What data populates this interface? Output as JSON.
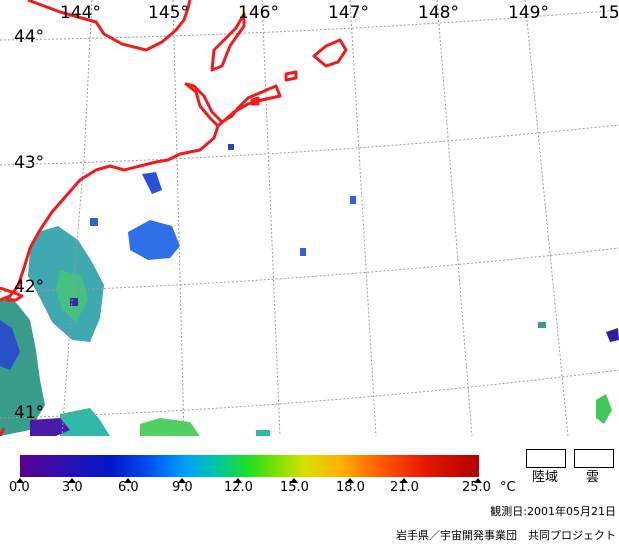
{
  "map": {
    "lon_labels": [
      "144°",
      "145°",
      "146°",
      "147°",
      "148°",
      "149°",
      "15"
    ],
    "lat_labels": [
      "44°",
      "43°",
      "42°",
      "41°"
    ],
    "colors": {
      "coastline": "#ee1c1c",
      "graticule": "#9a9a9a",
      "legend_land": "#ffffff",
      "legend_cloud": "#ffffff"
    }
  },
  "legend": {
    "ticks": [
      "0.0",
      "3.0",
      "6.0",
      "9.0",
      "12.0",
      "15.0",
      "18.0",
      "21.0",
      "25.0"
    ],
    "unit": "°C",
    "land_label": "陸域",
    "cloud_label": "雲"
  },
  "footer": {
    "observation_date": "観測日:2001年05月21日",
    "credit": "岩手県／宇宙開発事業団　共同プロジェクト"
  }
}
